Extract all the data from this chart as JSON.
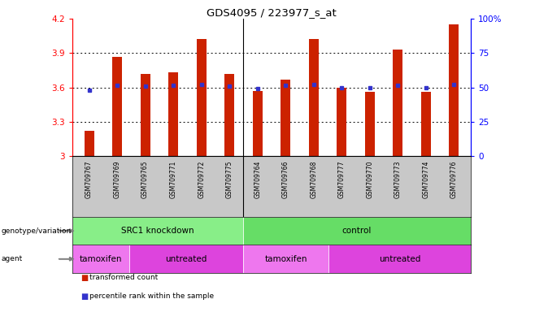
{
  "title": "GDS4095 / 223977_s_at",
  "samples": [
    "GSM709767",
    "GSM709769",
    "GSM709765",
    "GSM709771",
    "GSM709772",
    "GSM709775",
    "GSM709764",
    "GSM709766",
    "GSM709768",
    "GSM709777",
    "GSM709770",
    "GSM709773",
    "GSM709774",
    "GSM709776"
  ],
  "bar_values": [
    3.22,
    3.87,
    3.72,
    3.73,
    4.02,
    3.72,
    3.57,
    3.67,
    4.02,
    3.6,
    3.56,
    3.93,
    3.56,
    4.15
  ],
  "percentile_values": [
    3.575,
    3.62,
    3.61,
    3.62,
    3.625,
    3.61,
    3.59,
    3.62,
    3.625,
    3.6,
    3.595,
    3.62,
    3.595,
    3.625
  ],
  "bar_color": "#cc2200",
  "dot_color": "#3333cc",
  "ymin": 3.0,
  "ymax": 4.2,
  "y_ticks_left": [
    3.0,
    3.3,
    3.6,
    3.9,
    4.2
  ],
  "y_tick_labels_left": [
    "3",
    "3.3",
    "3.6",
    "3.9",
    "4.2"
  ],
  "y_ticks_right_labels": [
    "0",
    "25",
    "50",
    "75",
    "100%"
  ],
  "dotted_lines": [
    3.3,
    3.6,
    3.9
  ],
  "separator_after": 5,
  "genotype_groups": [
    {
      "label": "SRC1 knockdown",
      "start": 0,
      "end": 6,
      "color": "#88ee88"
    },
    {
      "label": "control",
      "start": 6,
      "end": 14,
      "color": "#66dd66"
    }
  ],
  "agent_groups": [
    {
      "label": "tamoxifen",
      "start": 0,
      "end": 2,
      "color": "#ee77ee"
    },
    {
      "label": "untreated",
      "start": 2,
      "end": 6,
      "color": "#dd44dd"
    },
    {
      "label": "tamoxifen",
      "start": 6,
      "end": 9,
      "color": "#ee77ee"
    },
    {
      "label": "untreated",
      "start": 9,
      "end": 14,
      "color": "#dd44dd"
    }
  ],
  "legend_items": [
    {
      "label": "transformed count",
      "color": "#cc2200"
    },
    {
      "label": "percentile rank within the sample",
      "color": "#3333cc"
    }
  ],
  "label_row_bg": "#c8c8c8",
  "bar_width": 0.35,
  "n_samples": 14
}
